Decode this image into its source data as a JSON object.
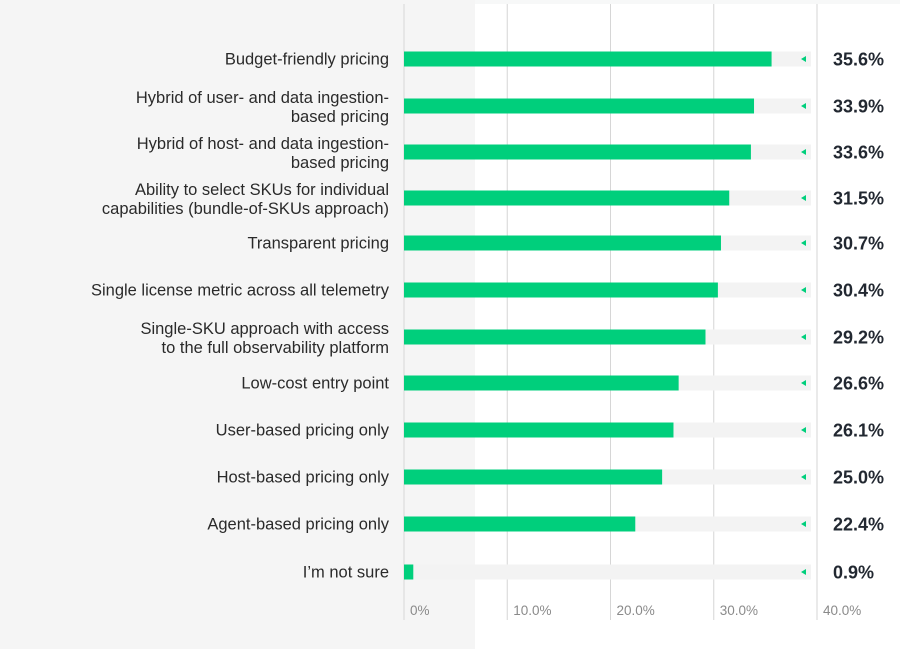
{
  "chart_data": {
    "type": "bar",
    "orientation": "horizontal",
    "categories": [
      [
        "Budget-friendly pricing"
      ],
      [
        "Hybrid of user- and data ingestion-",
        "based pricing"
      ],
      [
        "Hybrid of host- and data ingestion-",
        "based pricing"
      ],
      [
        "Ability to select SKUs for individual",
        "capabilities (bundle-of-SKUs approach)"
      ],
      [
        "Transparent pricing"
      ],
      [
        "Single license metric across all telemetry"
      ],
      [
        "Single-SKU approach with access",
        "to the full observability platform"
      ],
      [
        "Low-cost entry point"
      ],
      [
        "User-based pricing only"
      ],
      [
        "Host-based pricing only"
      ],
      [
        "Agent-based pricing only"
      ],
      [
        "I’m not sure"
      ]
    ],
    "values": [
      35.6,
      33.9,
      33.6,
      31.5,
      30.7,
      30.4,
      29.2,
      26.6,
      26.1,
      25.0,
      22.4,
      0.9
    ],
    "value_labels": [
      "35.6%",
      "33.9%",
      "33.6%",
      "31.5%",
      "30.7%",
      "30.4%",
      "29.2%",
      "26.6%",
      "26.1%",
      "25.0%",
      "22.4%",
      "0.9%"
    ],
    "xlim": [
      0,
      40
    ],
    "x_ticks": [
      0,
      10,
      20,
      30,
      40
    ],
    "x_tick_labels": [
      "0%",
      "10.0%",
      "20.0%",
      "30.0%",
      "40.0%"
    ],
    "grid": true,
    "colors": {
      "bar": "#00cf7c",
      "track": "#f3f3f3",
      "marker": "#00cf7c",
      "grid": "#d6d6d6"
    }
  }
}
